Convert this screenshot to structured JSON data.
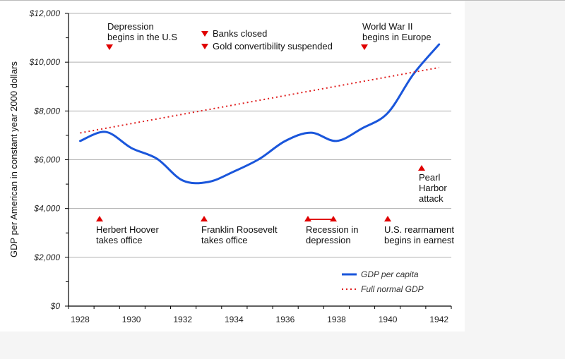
{
  "chart_data": {
    "type": "line",
    "title": "",
    "xlabel": "",
    "ylabel": "GDP per American in constant year 2000 dollars",
    "x": [
      1928,
      1929,
      1930,
      1931,
      1932,
      1933,
      1934,
      1935,
      1936,
      1937,
      1938,
      1939,
      1940,
      1941,
      1942
    ],
    "x_tick_labels": [
      "1928",
      "1930",
      "1932",
      "1934",
      "1936",
      "1938",
      "1940",
      "1942"
    ],
    "y_tick_labels": [
      "$0",
      "$2,000",
      "$4,000",
      "$6,000",
      "$8,000",
      "$10,000",
      "$12,000"
    ],
    "ylim": [
      0,
      12000
    ],
    "grid": true,
    "legend_position": "bottom-right",
    "series": [
      {
        "name": "GDP per capita",
        "color": "#1a56db",
        "style": "solid",
        "values": [
          6770,
          7140,
          6480,
          6040,
          5150,
          5090,
          5520,
          6040,
          6770,
          7110,
          6770,
          7290,
          7920,
          9510,
          10730
        ]
      },
      {
        "name": "Full normal GDP",
        "color": "#e02020",
        "style": "dotted",
        "values": [
          7100,
          7290,
          7490,
          7680,
          7870,
          8060,
          8250,
          8440,
          8640,
          8830,
          9020,
          9210,
          9400,
          9590,
          9780
        ]
      }
    ],
    "annotations": [
      {
        "text": [
          "Depression",
          "begins in the U.S"
        ],
        "year": 1929.1,
        "marker": "down"
      },
      {
        "text": [
          "Banks closed"
        ],
        "year": 1932.8,
        "marker": "down"
      },
      {
        "text": [
          "Gold convertibility suspended"
        ],
        "year": 1932.8,
        "marker": "down"
      },
      {
        "text": [
          "World War II",
          "begins in Europe"
        ],
        "year": 1939.1,
        "marker": "down"
      },
      {
        "text": [
          "Herbert Hoover",
          "takes office"
        ],
        "year": 1928.8,
        "marker": "up"
      },
      {
        "text": [
          "Franklin Roosevelt",
          "takes office"
        ],
        "year": 1932.8,
        "marker": "up"
      },
      {
        "text": [
          "Recession in",
          "depression"
        ],
        "year": 1936.8,
        "year_end": 1937.8,
        "marker": "up-range"
      },
      {
        "text": [
          "U.S. rearmament",
          "begins in earnest"
        ],
        "year": 1939.9,
        "marker": "up"
      },
      {
        "text": [
          "Pearl",
          "Harbor",
          "attack"
        ],
        "year": 1941.2,
        "marker": "up"
      }
    ]
  }
}
